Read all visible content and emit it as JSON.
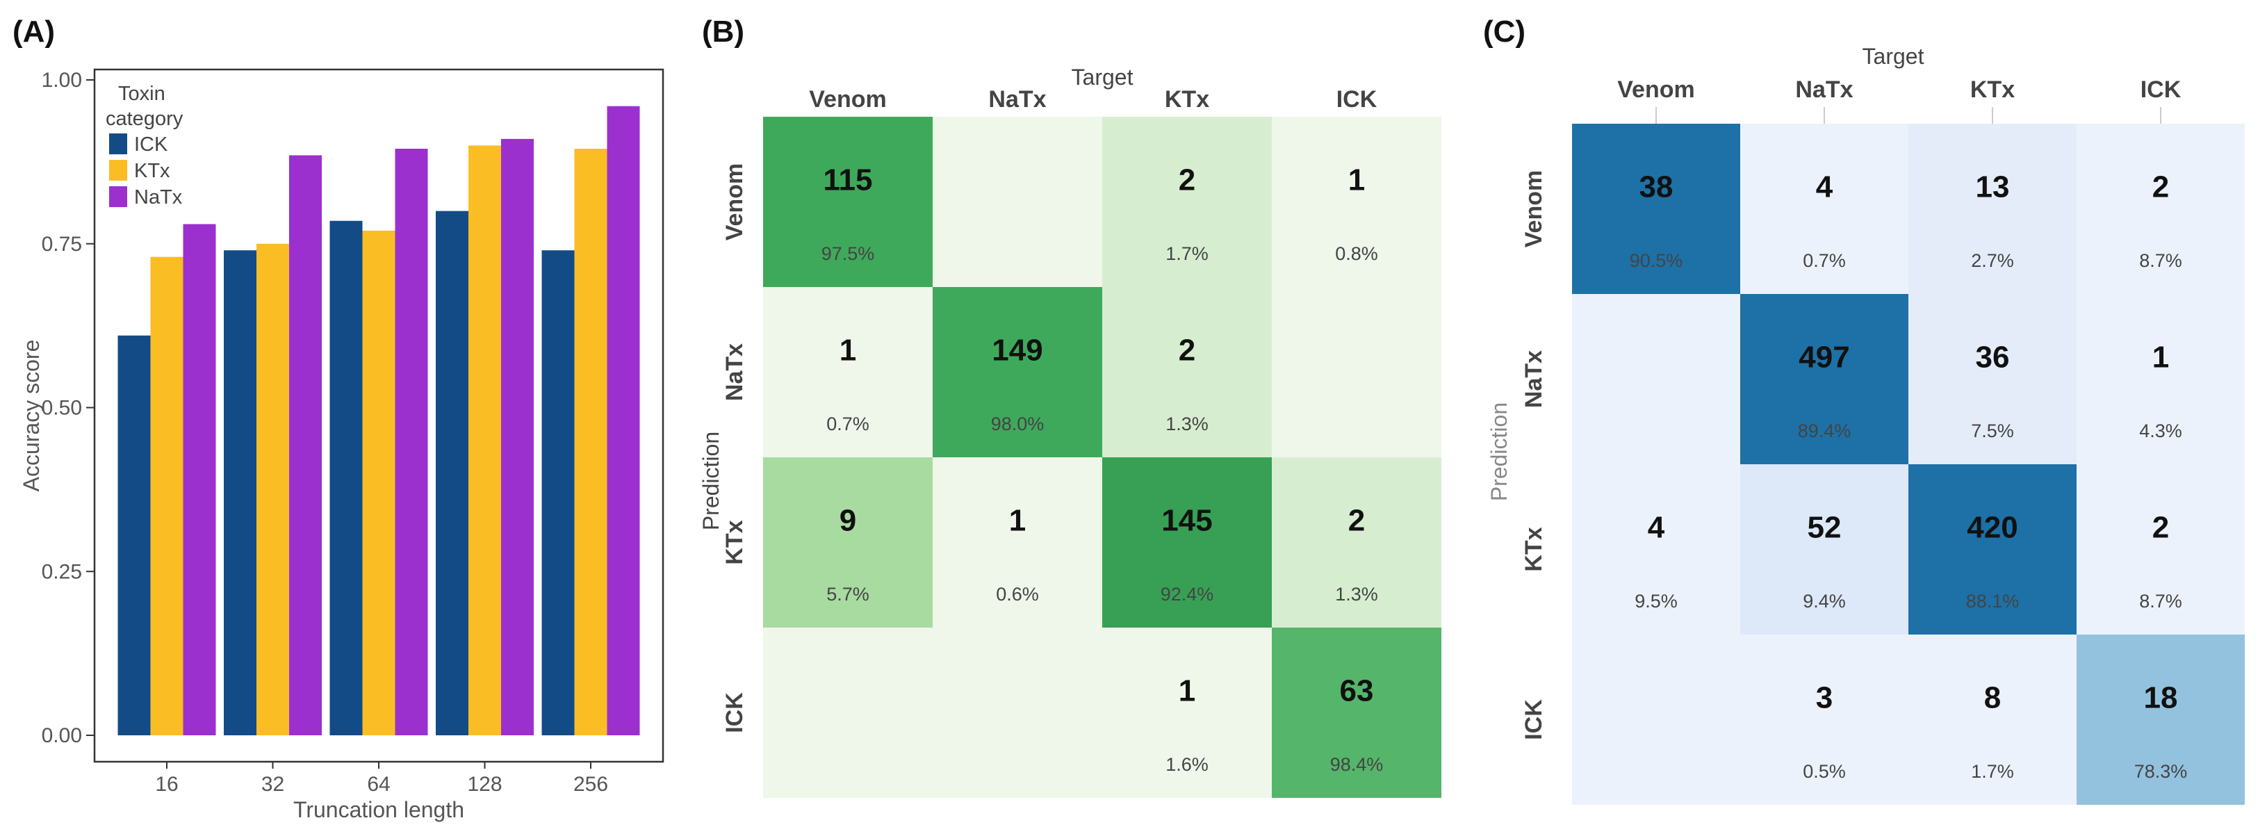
{
  "chart_data": [
    {
      "type": "bar",
      "panel": "(A)",
      "xlabel": "Truncation length",
      "ylabel": "Accuracy score",
      "categories": [
        "16",
        "32",
        "64",
        "128",
        "256"
      ],
      "ylim": [
        0,
        1
      ],
      "yticks": [
        "0.00",
        "0.25",
        "0.50",
        "0.75",
        "1.00"
      ],
      "legend_title_line1": "Toxin",
      "legend_title_line2": "category",
      "legend_position": "top-left",
      "series": [
        {
          "name": "ICK",
          "color": "#134b87",
          "values": [
            0.61,
            0.74,
            0.785,
            0.8,
            0.74
          ]
        },
        {
          "name": "KTx",
          "color": "#fbbd24",
          "values": [
            0.73,
            0.75,
            0.77,
            0.9,
            0.895
          ]
        },
        {
          "name": "NaTx",
          "color": "#9b30cf",
          "values": [
            0.78,
            0.885,
            0.895,
            0.91,
            0.96
          ]
        }
      ]
    },
    {
      "type": "heatmap",
      "panel": "(B)",
      "xlabel": "Target",
      "ylabel": "Prediction",
      "columns": [
        "Venom",
        "NaTx",
        "KTx",
        "ICK"
      ],
      "rows": [
        "Venom",
        "NaTx",
        "KTx",
        "ICK"
      ],
      "counts": [
        [
          "115",
          "",
          "2",
          "1"
        ],
        [
          "1",
          "149",
          "2",
          ""
        ],
        [
          "9",
          "1",
          "145",
          "2"
        ],
        [
          "",
          "",
          "1",
          "63"
        ]
      ],
      "percents": [
        [
          "97.5%",
          "",
          "1.7%",
          "0.8%"
        ],
        [
          "0.7%",
          "98.0%",
          "1.3%",
          ""
        ],
        [
          "5.7%",
          "0.6%",
          "92.4%",
          "1.3%"
        ],
        [
          "",
          "",
          "1.6%",
          "98.4%"
        ]
      ],
      "cell_colors": [
        [
          "#3fa95b",
          "#eef7ea",
          "#d6eecf",
          "#eef7ea"
        ],
        [
          "#eef7ea",
          "#3fa95b",
          "#d6eecf",
          "#eef7ea"
        ],
        [
          "#a8dba0",
          "#eef7ea",
          "#37a055",
          "#d6eecf"
        ],
        [
          "#eef7ea",
          "#eef7ea",
          "#eef7ea",
          "#55b56a"
        ]
      ]
    },
    {
      "type": "heatmap",
      "panel": "(C)",
      "xlabel": "Target",
      "ylabel": "Prediction",
      "columns": [
        "Venom",
        "NaTx",
        "KTx",
        "ICK"
      ],
      "rows": [
        "Venom",
        "NaTx",
        "KTx",
        "ICK"
      ],
      "counts": [
        [
          "38",
          "4",
          "13",
          "2"
        ],
        [
          "",
          "497",
          "36",
          "1"
        ],
        [
          "4",
          "52",
          "420",
          "2"
        ],
        [
          "",
          "3",
          "8",
          "18"
        ]
      ],
      "percents": [
        [
          "90.5%",
          "0.7%",
          "2.7%",
          "8.7%"
        ],
        [
          "",
          "89.4%",
          "7.5%",
          "4.3%"
        ],
        [
          "9.5%",
          "9.4%",
          "88.1%",
          "8.7%"
        ],
        [
          "",
          "0.5%",
          "1.7%",
          "78.3%"
        ]
      ],
      "cell_colors": [
        [
          "#1d71a6",
          "#ecf2fc",
          "#e4ecfa",
          "#ecf2fc"
        ],
        [
          "#ecf2fc",
          "#1d71a6",
          "#e4ecfa",
          "#ecf2fc"
        ],
        [
          "#ecf2fc",
          "#dde8f8",
          "#1d71a6",
          "#ecf2fc"
        ],
        [
          "#ecf2fc",
          "#ecf2fc",
          "#ecf2fc",
          "#93c2de"
        ]
      ]
    }
  ]
}
